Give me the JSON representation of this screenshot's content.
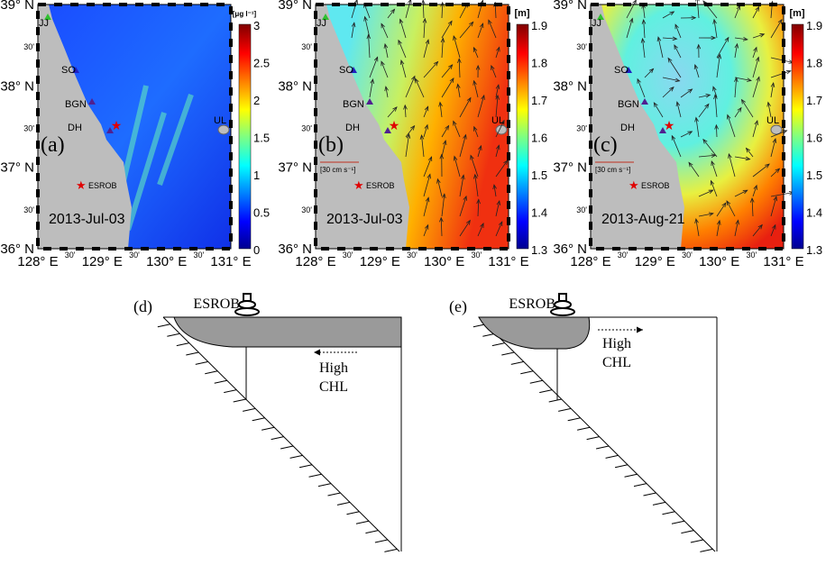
{
  "panels": [
    {
      "label": "(a)",
      "date": "2013-Jul-03",
      "unit": "[μg l⁻¹]",
      "cbar_ticks": [
        "3",
        "2.5",
        "2",
        "1.5",
        "1",
        "0.5",
        "0"
      ],
      "colormap": "jet",
      "variable": "chlorophyll",
      "has_vectors": false
    },
    {
      "label": "(b)",
      "date": "2013-Jul-03",
      "unit": "[m]",
      "cbar_ticks": [
        "1.9",
        "1.8",
        "1.7",
        "1.6",
        "1.5",
        "1.4",
        "1.3"
      ],
      "colormap": "jet",
      "variable": "sea level",
      "has_vectors": true,
      "scale_label": "[30 cm s⁻¹]"
    },
    {
      "label": "(c)",
      "date": "2013-Aug-21",
      "unit": "[m]",
      "cbar_ticks": [
        "1.9",
        "1.8",
        "1.7",
        "1.6",
        "1.5",
        "1.4",
        "1.3"
      ],
      "colormap": "jet",
      "variable": "sea level",
      "has_vectors": true,
      "scale_label": "[30 cm s⁻¹]"
    }
  ],
  "lat_ticks": [
    "39° N",
    "30'",
    "38° N",
    "30'",
    "37° N",
    "30'",
    "36° N"
  ],
  "lon_ticks": [
    "128° E",
    "30'",
    "129° E",
    "30'",
    "130° E",
    "30'",
    "131° E"
  ],
  "stations": {
    "jj": "JJ",
    "so": "SO",
    "bgn": "BGN",
    "dh": "DH",
    "ul": "UL",
    "esrob": "ESROB"
  },
  "diagrams": [
    {
      "label": "(d)",
      "buoy": "ESROB",
      "note_line1": "High",
      "note_line2": "CHL",
      "arrow_direction": "left"
    },
    {
      "label": "(e)",
      "buoy": "ESROB",
      "note_line1": "High",
      "note_line2": "CHL",
      "arrow_direction": "right"
    }
  ]
}
